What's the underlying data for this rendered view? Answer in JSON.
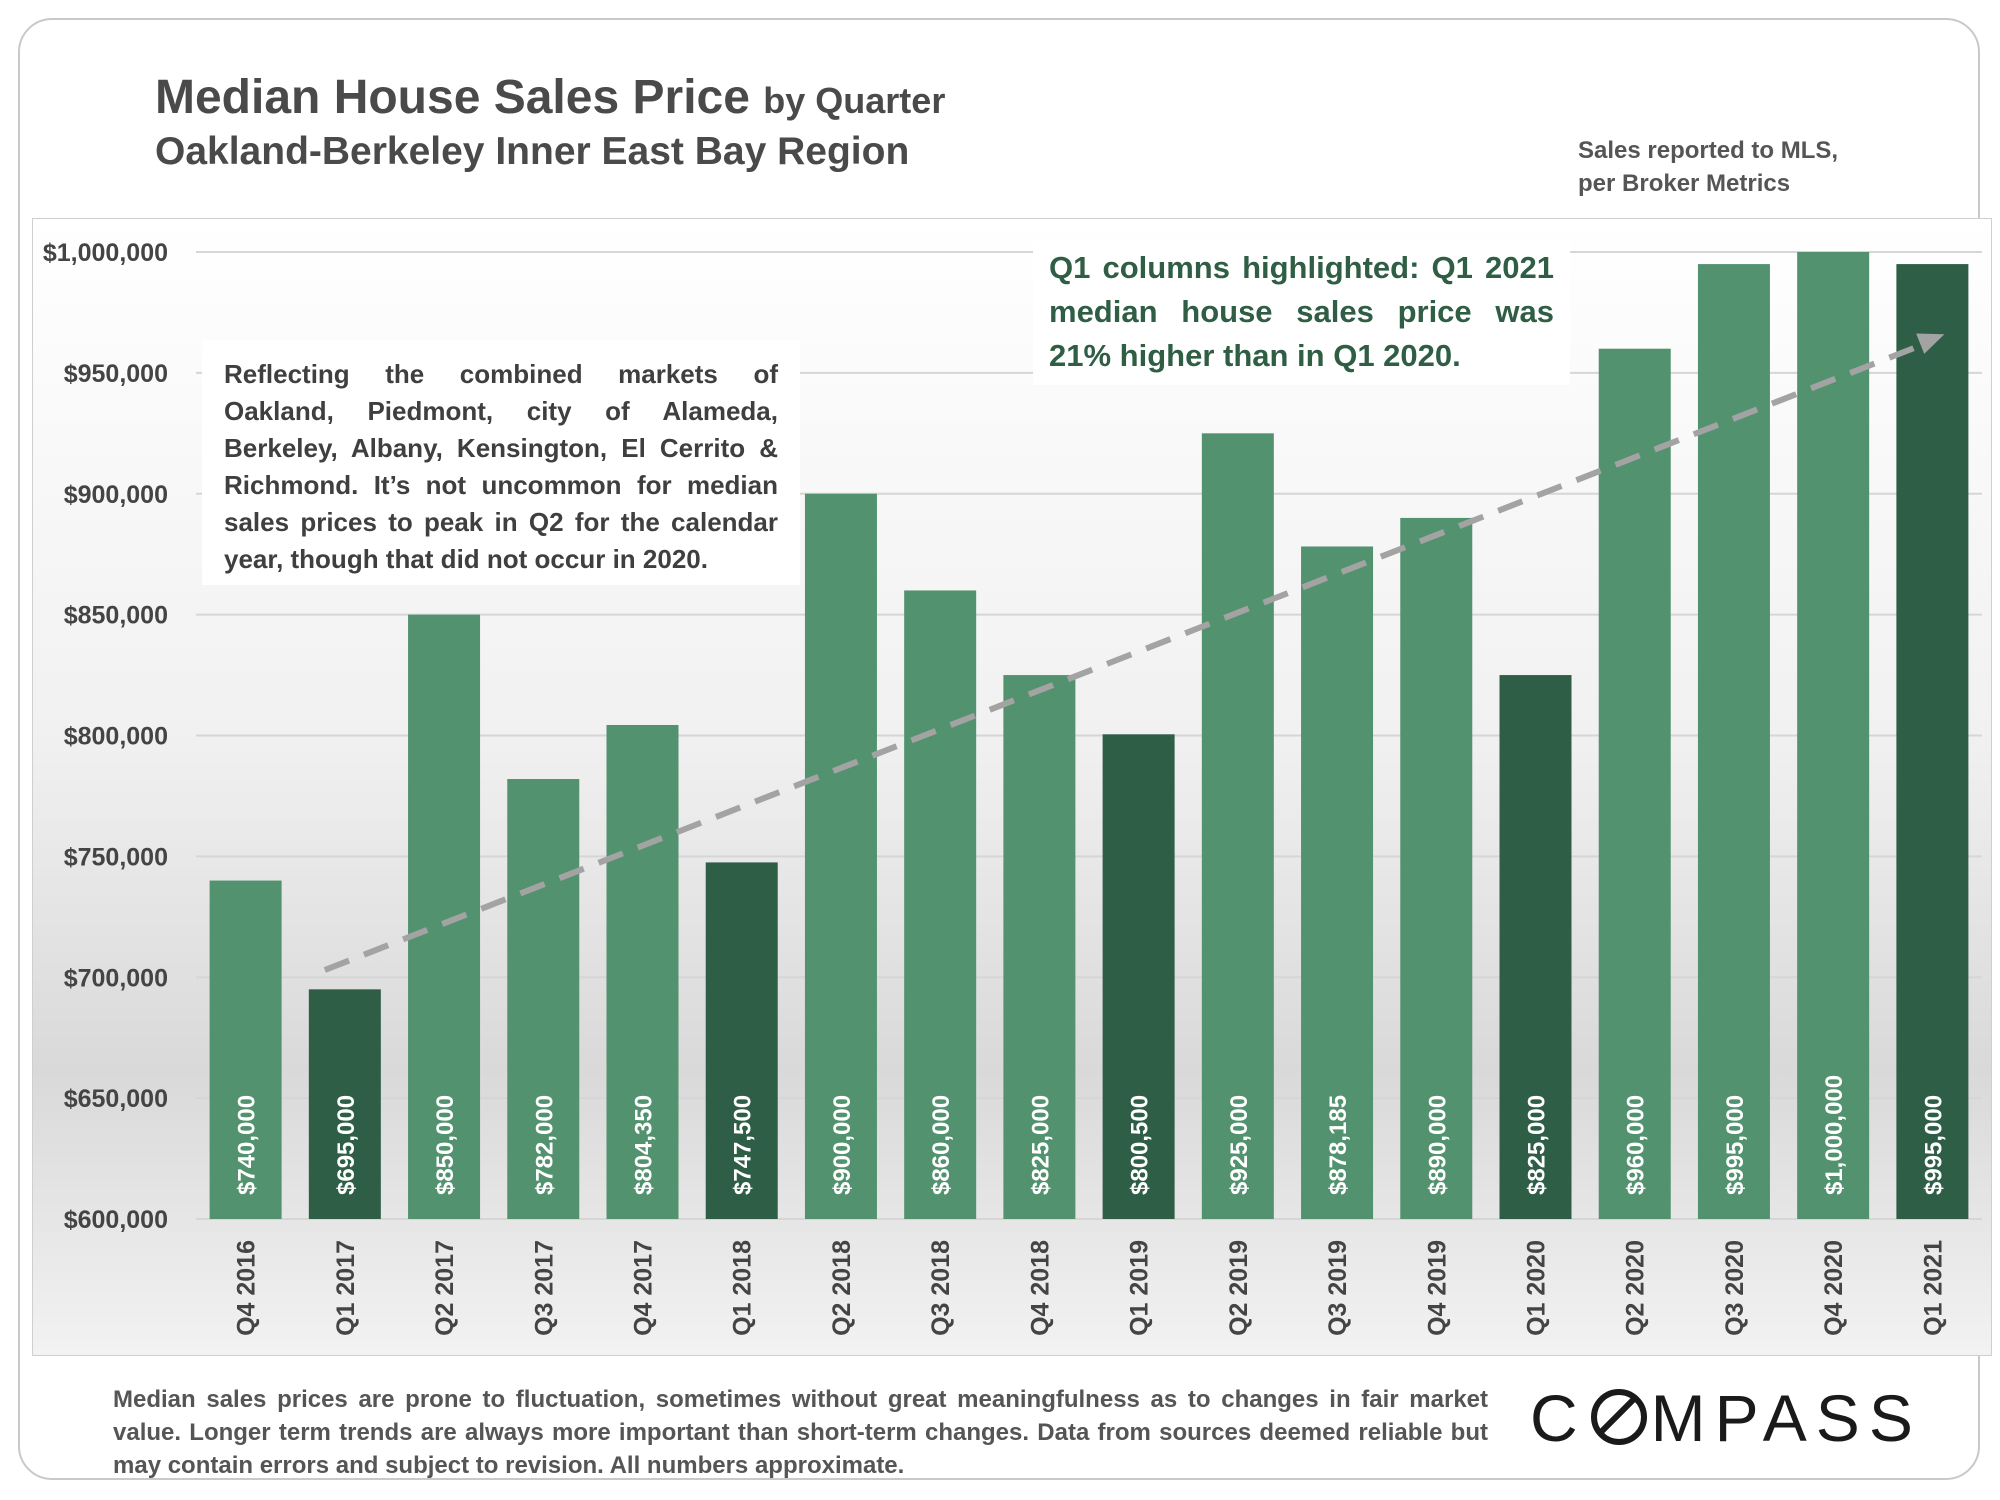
{
  "header": {
    "title_main": "Median House Sales Price",
    "title_by": "by Quarter",
    "title_sub": "Oakland-Berkeley Inner East Bay Region",
    "source_line1": "Sales reported to MLS,",
    "source_line2": "per Broker Metrics"
  },
  "notes": {
    "markets": "Reflecting the combined markets of Oakland, Piedmont, city of Alameda, Berkeley, Albany, Kensington, El Cerrito & Richmond. It’s not uncommon for median sales prices to peak in Q2 for the calendar year, though that did not occur in 2020.",
    "callout": "Q1 columns highlighted: Q1 2021 median house sales price was 21% higher than in Q1 2020."
  },
  "footer": {
    "disclaimer": "Median sales prices are prone to fluctuation, sometimes without great meaningfulness as to changes in fair market value. Longer term trends are always more important than short-term changes. Data from sources deemed reliable but may contain errors and subject to revision. All numbers approximate.",
    "logo_left": "C",
    "logo_right": "MPASS"
  },
  "colors": {
    "bar_regular": "#52926f",
    "bar_q1": "#2f5e47",
    "trend": "#a3a3a3",
    "gridline": "#d6d6d6"
  },
  "chart_data": {
    "type": "bar",
    "categories": [
      "Q4 2016",
      "Q1 2017",
      "Q2 2017",
      "Q3 2017",
      "Q4 2017",
      "Q1 2018",
      "Q2 2018",
      "Q3 2018",
      "Q4 2018",
      "Q1 2019",
      "Q2 2019",
      "Q3 2019",
      "Q4 2019",
      "Q1 2020",
      "Q2 2020",
      "Q3 2020",
      "Q4 2020",
      "Q1 2021"
    ],
    "values": [
      740000,
      695000,
      850000,
      782000,
      804350,
      747500,
      900000,
      860000,
      825000,
      800500,
      925000,
      878185,
      890000,
      825000,
      960000,
      995000,
      1000000,
      995000
    ],
    "data_labels": [
      "$740,000",
      "$695,000",
      "$850,000",
      "$782,000",
      "$804,350",
      "$747,500",
      "$900,000",
      "$860,000",
      "$825,000",
      "$800,500",
      "$925,000",
      "$878,185",
      "$890,000",
      "$825,000",
      "$960,000",
      "$995,000",
      "$1,000,000",
      "$995,000"
    ],
    "highlight": [
      false,
      true,
      false,
      false,
      false,
      true,
      false,
      false,
      false,
      true,
      false,
      false,
      false,
      true,
      false,
      false,
      false,
      true
    ],
    "ylim": [
      600000,
      1000000
    ],
    "yticks": [
      600000,
      650000,
      700000,
      750000,
      800000,
      850000,
      900000,
      950000,
      1000000
    ],
    "ytick_labels": [
      "$600,000",
      "$650,000",
      "$700,000",
      "$750,000",
      "$800,000",
      "$850,000",
      "$900,000",
      "$950,000",
      "$1,000,000"
    ],
    "trend_line": {
      "from_category": "Q1 2017",
      "from_value": 703000,
      "to_category": "Q1 2021",
      "to_value": 966000
    },
    "grid": true,
    "legend": "none"
  }
}
